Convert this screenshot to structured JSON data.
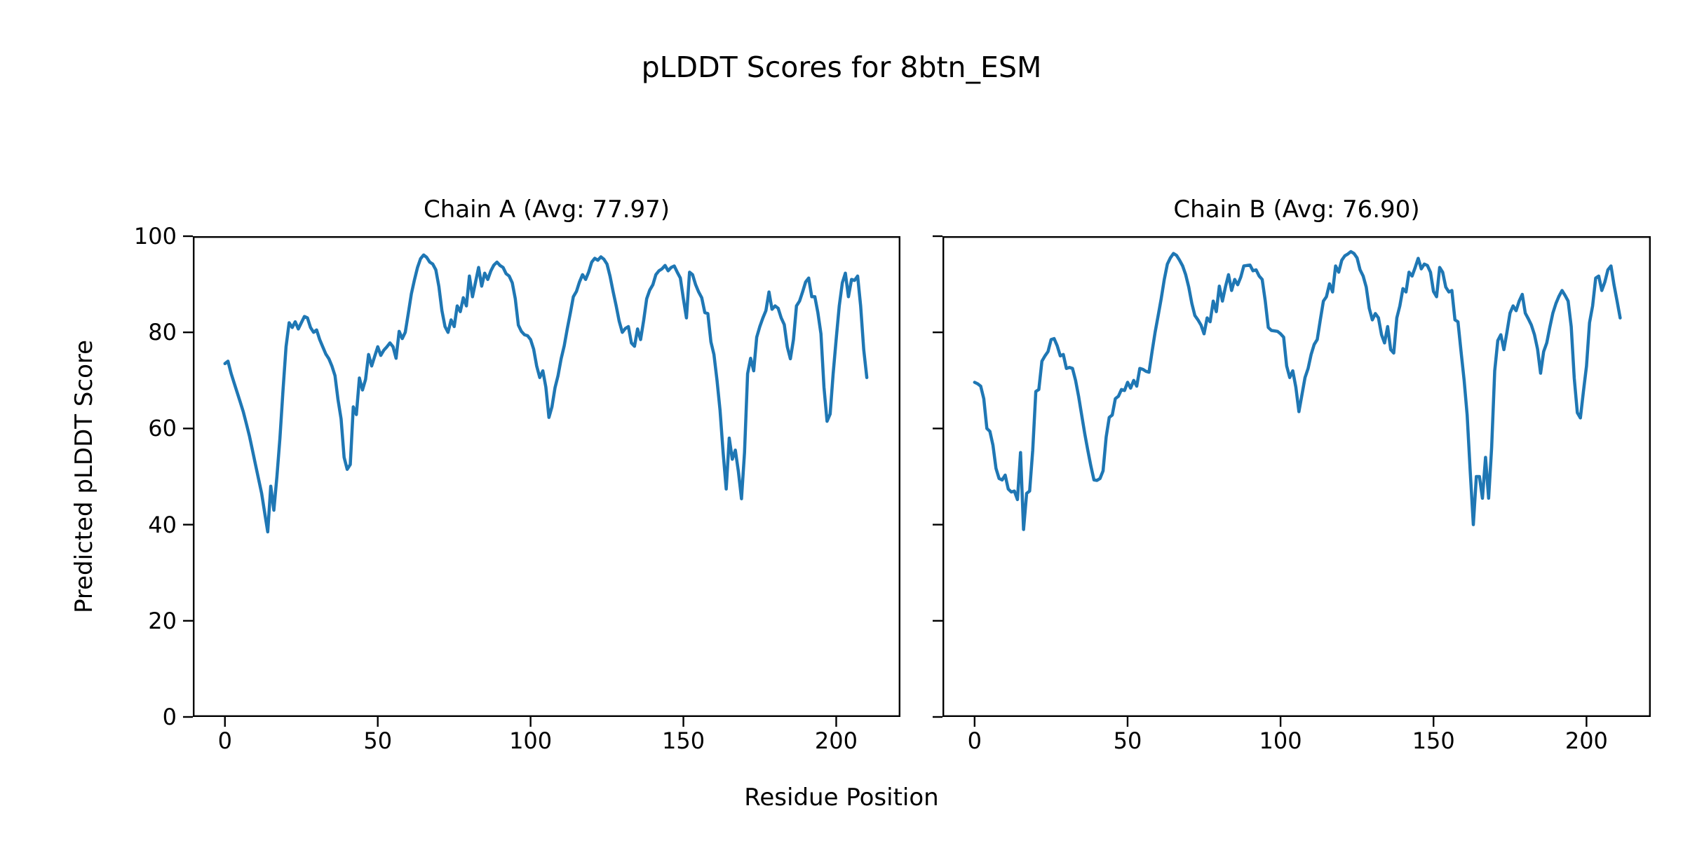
{
  "figure": {
    "suptitle": "pLDDT Scores for 8btn_ESM",
    "xlabel": "Residue Position",
    "ylabel": "Predicted pLDDT Score",
    "line_color": "#1f77b4",
    "axis_color": "#000000",
    "background": "#ffffff"
  },
  "chart_data": [
    {
      "type": "line",
      "title": "Chain A (Avg: 77.97)",
      "chain": "A",
      "avg": 77.97,
      "xlim": [
        -10.5,
        221
      ],
      "ylim": [
        0,
        100
      ],
      "xticks": [
        0,
        50,
        100,
        150,
        200
      ],
      "yticks": [
        0,
        20,
        40,
        60,
        80,
        100
      ],
      "show_ytick_labels": true,
      "x_start": 0,
      "x_step": 1,
      "y": [
        73.5,
        74,
        71.5,
        69.5,
        67.5,
        65.5,
        63.5,
        61,
        58.5,
        55.5,
        52.5,
        49.5,
        46.5,
        42.5,
        38.5,
        48,
        43,
        50,
        58,
        68,
        77,
        82,
        81,
        82.2,
        80.7,
        82,
        83.3,
        83,
        81,
        80,
        80.5,
        78.5,
        77,
        75.5,
        74.5,
        73,
        71,
        66,
        62,
        54,
        51.5,
        52.5,
        64.5,
        62.9,
        70.5,
        68,
        70.2,
        75.4,
        73,
        75,
        77,
        75.2,
        76.3,
        77,
        77.8,
        77,
        74.6,
        80.2,
        78.7,
        80,
        84,
        88,
        90.9,
        93.5,
        95.3,
        96.1,
        95.6,
        94.6,
        94.2,
        93,
        89.5,
        84.5,
        81.2,
        80,
        82.6,
        81.2,
        85.5,
        84.3,
        87.2,
        85.5,
        91.7,
        87.4,
        90.5,
        93.5,
        89.6,
        92.3,
        91,
        92.8,
        94,
        94.6,
        93.9,
        93.5,
        92.2,
        91.7,
        90.3,
        87,
        81.5,
        80.2,
        79.5,
        79.3,
        78.5,
        76.5,
        73,
        70.6,
        72,
        68.6,
        62.3,
        64.5,
        68.5,
        71,
        74.5,
        77.2,
        80.7,
        84,
        87.4,
        88.5,
        90.5,
        92,
        91,
        92.5,
        94.6,
        95.4,
        95,
        95.7,
        95.2,
        94.2,
        91.7,
        88.5,
        85.5,
        82.3,
        80,
        80.8,
        81.2,
        77.8,
        77.1,
        80.7,
        78.5,
        82.5,
        87,
        88.8,
        89.9,
        92,
        92.8,
        93.2,
        93.9,
        92.8,
        93.5,
        93.8,
        92.5,
        91.3,
        87,
        83,
        92.5,
        92,
        89.9,
        88.4,
        87.2,
        84.1,
        83.9,
        78,
        75.4,
        70,
        63.8,
        55,
        47.4,
        58,
        53.6,
        55.5,
        51,
        45.4,
        55,
        71.4,
        74.6,
        72,
        79,
        81.2,
        83,
        84.5,
        88.4,
        84.8,
        85.5,
        85,
        83,
        81.6,
        77,
        74.5,
        78.5,
        85.5,
        86.5,
        88.4,
        90.5,
        91.3,
        87.4,
        87.4,
        84.1,
        79.7,
        68.6,
        61.5,
        63,
        71.4,
        78.7,
        85.5,
        90.3,
        92.3,
        87.4,
        91,
        90.8,
        91.7,
        85.5,
        76.4,
        70.6
      ]
    },
    {
      "type": "line",
      "title": "Chain B (Avg: 76.90)",
      "chain": "B",
      "avg": 76.9,
      "xlim": [
        -10.5,
        221
      ],
      "ylim": [
        0,
        100
      ],
      "xticks": [
        0,
        50,
        100,
        150,
        200
      ],
      "yticks": [
        0,
        20,
        40,
        60,
        80,
        100
      ],
      "show_ytick_labels": false,
      "x_start": 0,
      "x_step": 1,
      "y": [
        69.6,
        69.3,
        68.8,
        66.2,
        60,
        59.4,
        56.5,
        51.7,
        49.6,
        49.3,
        50.3,
        47.4,
        46.8,
        47,
        45.2,
        55,
        39,
        46.5,
        47,
        55.5,
        67.7,
        68.1,
        74,
        75.1,
        76,
        78.5,
        78.7,
        77.2,
        75.1,
        75.4,
        72.5,
        72.7,
        72.5,
        70,
        66.7,
        62.8,
        58.9,
        55.5,
        52.2,
        49.3,
        49.2,
        49.6,
        51.2,
        58.2,
        62.3,
        62.8,
        66.2,
        66.7,
        68.1,
        67.9,
        69.6,
        68.4,
        70,
        68.8,
        72.5,
        72.3,
        71.9,
        71.7,
        76,
        80,
        83.5,
        87,
        91,
        94.2,
        95.5,
        96.4,
        96,
        95,
        93.8,
        92,
        89.4,
        86,
        83.5,
        82.6,
        81.5,
        79.7,
        83,
        82.2,
        86.5,
        84.3,
        89.6,
        86.5,
        89.5,
        92,
        88.7,
        91,
        89.9,
        91.5,
        93.8,
        93.9,
        94,
        92.8,
        93,
        91.7,
        91,
        86.5,
        81,
        80.4,
        80.3,
        80.2,
        79.7,
        79,
        73,
        70.6,
        72,
        68.6,
        63.5,
        67,
        70.6,
        72.5,
        75.4,
        77.5,
        78.5,
        82.6,
        86.5,
        87.4,
        90.1,
        88.4,
        93.8,
        92.5,
        95,
        95.9,
        96.3,
        96.8,
        96.4,
        95.5,
        93,
        91.7,
        89.4,
        85,
        82.6,
        83.9,
        83,
        79.5,
        77.8,
        81.2,
        76.4,
        75.7,
        83,
        85.5,
        89.1,
        88.4,
        92.5,
        91.7,
        93.5,
        95.4,
        93.2,
        94.2,
        93.9,
        92.5,
        88.5,
        87.4,
        93.5,
        92.5,
        89.4,
        88.4,
        88.7,
        82.6,
        82.2,
        76,
        70,
        62.8,
        51,
        40,
        50,
        50,
        45.5,
        54,
        45.5,
        56,
        72,
        78.3,
        79.5,
        76.4,
        80,
        84,
        85.5,
        84.5,
        86.5,
        87.9,
        84,
        82.8,
        81.5,
        79.5,
        76.5,
        71.5,
        76,
        77.8,
        81,
        84,
        86,
        87.5,
        88.7,
        87.7,
        86.5,
        81.2,
        70.5,
        63.3,
        62.2,
        67.7,
        73,
        82,
        85.5,
        91.3,
        91.7,
        88.7,
        90.5,
        93,
        93.8,
        89.9,
        86.5,
        83
      ]
    }
  ]
}
